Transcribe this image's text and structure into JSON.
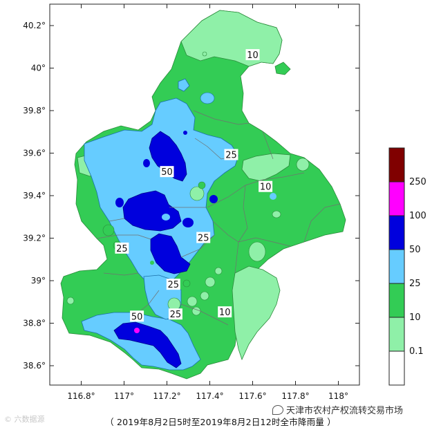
{
  "map": {
    "x_ticks": [
      "116.8°",
      "117°",
      "117.2°",
      "117.4°",
      "117.6°",
      "117.8°",
      "118°"
    ],
    "y_ticks": [
      "40.2°",
      "40°",
      "39.8°",
      "39.6°",
      "39.4°",
      "39.2°",
      "39°",
      "38.8°",
      "38.6°"
    ],
    "contour_labels": [
      {
        "text": "10",
        "x": 117.6,
        "y": 40.06
      },
      {
        "text": "25",
        "x": 117.5,
        "y": 39.59
      },
      {
        "text": "50",
        "x": 117.2,
        "y": 39.51
      },
      {
        "text": "10",
        "x": 117.66,
        "y": 39.44
      },
      {
        "text": "25",
        "x": 117.37,
        "y": 39.2
      },
      {
        "text": "25",
        "x": 116.99,
        "y": 39.15
      },
      {
        "text": "25",
        "x": 117.23,
        "y": 38.98
      },
      {
        "text": "50",
        "x": 117.06,
        "y": 38.83
      },
      {
        "text": "25",
        "x": 117.24,
        "y": 38.84
      },
      {
        "text": "10",
        "x": 117.47,
        "y": 38.85
      }
    ]
  },
  "legend": {
    "items": [
      {
        "label": "250",
        "color": "#800000"
      },
      {
        "label": "100",
        "color": "#ff00ff"
      },
      {
        "label": "50",
        "color": "#0000dd"
      },
      {
        "label": "25",
        "color": "#66ccff"
      },
      {
        "label": "10",
        "color": "#33cc55"
      },
      {
        "label": "0.1",
        "color": "#8ff0a8"
      },
      {
        "label": "",
        "color": "#ffffff"
      }
    ]
  },
  "caption": "（ 2019年8月2日5时至2019年8月2日12时全市降雨量 ）",
  "watermarks": {
    "left": "© 六数据源",
    "right": "天津市农村产权流转交易市场"
  },
  "colors": {
    "light_green": "#8ff0a8",
    "green": "#33cc55",
    "light_blue": "#66ccff",
    "blue": "#0000dd",
    "magenta": "#ff00ff",
    "dark_red": "#800000"
  }
}
